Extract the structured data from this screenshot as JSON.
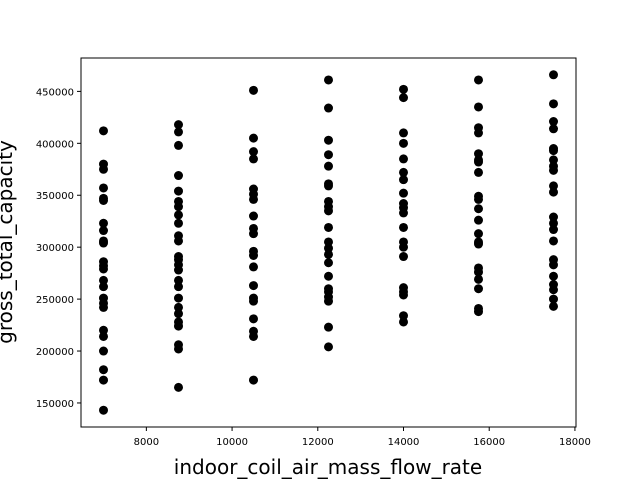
{
  "chart_data": {
    "type": "scatter",
    "x_label": "indoor_coil_air_mass_flow_rate",
    "y_label": "gross_total_capacity",
    "color": "#000000",
    "xlim": [
      6475,
      18025
    ],
    "ylim": [
      126850,
      482150
    ],
    "xticks": [
      8000,
      10000,
      12000,
      14000,
      16000,
      18000
    ],
    "yticks": [
      150000,
      200000,
      250000,
      300000,
      350000,
      400000,
      450000
    ],
    "x": [
      7000,
      7000,
      7000,
      7000,
      7000,
      7000,
      7000,
      7000,
      7000,
      7000,
      7000,
      7000,
      7000,
      7000,
      7000,
      7000,
      7000,
      7000,
      7000,
      7000,
      7000,
      7000,
      7000,
      7000,
      8750,
      8750,
      8750,
      8750,
      8750,
      8750,
      8750,
      8750,
      8750,
      8750,
      8750,
      8750,
      8750,
      8750,
      8750,
      8750,
      8750,
      8750,
      8750,
      8750,
      8750,
      8750,
      8750,
      8750,
      8750,
      10500,
      10500,
      10500,
      10500,
      10500,
      10500,
      10500,
      10500,
      10500,
      10500,
      10500,
      10500,
      10500,
      10500,
      10500,
      10500,
      10500,
      10500,
      10500,
      10500,
      12250,
      12250,
      12250,
      12250,
      12250,
      12250,
      12250,
      12250,
      12250,
      12250,
      12250,
      12250,
      12250,
      12250,
      12250,
      12250,
      12250,
      12250,
      12250,
      12250,
      12250,
      12250,
      14000,
      14000,
      14000,
      14000,
      14000,
      14000,
      14000,
      14000,
      14000,
      14000,
      14000,
      14000,
      14000,
      14000,
      14000,
      14000,
      14000,
      14000,
      14000,
      14000,
      15750,
      15750,
      15750,
      15750,
      15750,
      15750,
      15750,
      15750,
      15750,
      15750,
      15750,
      15750,
      15750,
      15750,
      15750,
      15750,
      15750,
      15750,
      15750,
      15750,
      15750,
      17500,
      17500,
      17500,
      17500,
      17500,
      17500,
      17500,
      17500,
      17500,
      17500,
      17500,
      17500,
      17500,
      17500,
      17500,
      17500,
      17500,
      17500,
      17500,
      17500,
      17500,
      17500
    ],
    "y": [
      412000,
      380000,
      375000,
      357000,
      347000,
      345000,
      323000,
      316000,
      306000,
      304000,
      286000,
      282000,
      279000,
      268000,
      262000,
      251000,
      246000,
      242000,
      220000,
      214000,
      200000,
      182000,
      172000,
      143000,
      418000,
      411000,
      398000,
      369000,
      354000,
      344000,
      339000,
      331000,
      323000,
      311000,
      306000,
      291000,
      288000,
      283000,
      278000,
      268000,
      262000,
      251000,
      242000,
      236000,
      228000,
      224000,
      206000,
      202000,
      165000,
      451000,
      405000,
      392000,
      385000,
      356000,
      351000,
      346000,
      330000,
      318000,
      313000,
      296000,
      292000,
      281000,
      263000,
      251000,
      248000,
      231000,
      219000,
      214000,
      172000,
      461000,
      434000,
      403000,
      389000,
      378000,
      361000,
      359000,
      344000,
      339000,
      335000,
      319000,
      305000,
      299000,
      293000,
      285000,
      272000,
      260000,
      257000,
      252000,
      248000,
      223000,
      204000,
      452000,
      444000,
      410000,
      400000,
      385000,
      372000,
      365000,
      352000,
      342000,
      338000,
      333000,
      319000,
      305000,
      300000,
      291000,
      261000,
      257000,
      254000,
      234000,
      228000,
      461000,
      435000,
      415000,
      410000,
      390000,
      384000,
      382000,
      372000,
      349000,
      346000,
      337000,
      326000,
      313000,
      305000,
      303000,
      280000,
      276000,
      269000,
      260000,
      241000,
      238000,
      466000,
      438000,
      421000,
      414000,
      395000,
      393000,
      384000,
      378000,
      374000,
      359000,
      353000,
      329000,
      323000,
      317000,
      306000,
      288000,
      283000,
      272000,
      264000,
      259000,
      250000,
      243000
    ]
  }
}
